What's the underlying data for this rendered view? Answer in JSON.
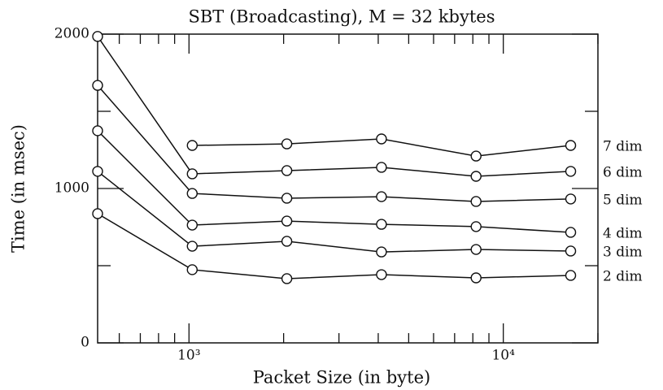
{
  "chart_data": {
    "type": "line",
    "title": "SBT (Broadcasting), M = 32 kbytes",
    "xlabel": "Packet Size (in byte)",
    "ylabel": "Time (in msec)",
    "xscale": "log",
    "x": [
      512,
      1024,
      2048,
      4096,
      8192,
      16384
    ],
    "xlim": [
      512,
      20000
    ],
    "xticks": [
      {
        "value": 1000,
        "label": "10³"
      },
      {
        "value": 10000,
        "label": "10⁴"
      }
    ],
    "xminor_ticks": [
      600,
      700,
      800,
      900,
      2000,
      3000,
      4000,
      5000,
      6000,
      7000,
      8000,
      9000,
      20000
    ],
    "ylim": [
      0,
      2000
    ],
    "yticks": [
      0,
      1000,
      2000
    ],
    "yminor_ticks": [
      500,
      1500
    ],
    "color": "#111111",
    "series": [
      {
        "name": "7 dim",
        "values": [
          null,
          1279,
          1289,
          1321,
          1210,
          1279
        ]
      },
      {
        "name": "6 dim",
        "values": [
          1985,
          1095,
          1116,
          1137,
          1079,
          1111
        ]
      },
      {
        "name": "5 dim",
        "values": [
          1668,
          968,
          937,
          947,
          916,
          932
        ]
      },
      {
        "name": "4 dim",
        "values": [
          1374,
          763,
          789,
          768,
          753,
          716
        ]
      },
      {
        "name": "3 dim",
        "values": [
          1111,
          626,
          658,
          589,
          605,
          595
        ]
      },
      {
        "name": "2 dim",
        "values": [
          837,
          474,
          416,
          442,
          421,
          437
        ]
      }
    ]
  }
}
